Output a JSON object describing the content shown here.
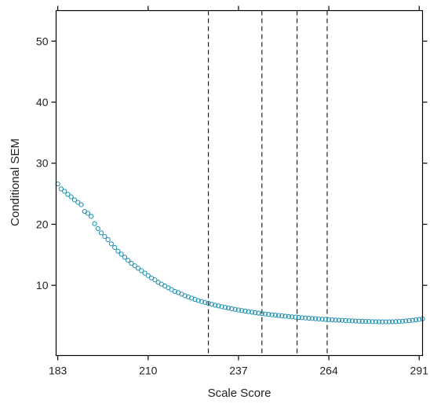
{
  "chart_data": {
    "type": "scatter",
    "xlabel": "Scale Score",
    "ylabel": "Conditional SEM",
    "xlim": [
      182.5,
      292
    ],
    "ylim": [
      -1.5,
      55
    ],
    "x_ticks": [
      183,
      210,
      237,
      264,
      291
    ],
    "y_ticks": [
      10,
      20,
      30,
      40,
      50
    ],
    "x_tick_labels": [
      "183",
      "210",
      "237",
      "264",
      "291"
    ],
    "y_tick_labels": [
      "10",
      "20",
      "30",
      "40",
      "50"
    ],
    "cut_scores": [
      228,
      244,
      254.5,
      263.5
    ],
    "grid": false,
    "marker_color": "#1a8fb0",
    "points": [
      [
        183,
        26.6
      ],
      [
        184,
        25.8
      ],
      [
        185,
        25.4
      ],
      [
        186,
        24.9
      ],
      [
        187,
        24.5
      ],
      [
        188,
        24.0
      ],
      [
        189,
        23.6
      ],
      [
        190,
        23.2
      ],
      [
        191,
        22.1
      ],
      [
        192,
        21.8
      ],
      [
        193,
        21.3
      ],
      [
        194,
        20.1
      ],
      [
        195,
        19.3
      ],
      [
        196,
        18.6
      ],
      [
        197,
        18.0
      ],
      [
        198,
        17.5
      ],
      [
        199,
        16.8
      ],
      [
        200,
        16.2
      ],
      [
        201,
        15.6
      ],
      [
        202,
        15.1
      ],
      [
        203,
        14.6
      ],
      [
        204,
        14.1
      ],
      [
        205,
        13.6
      ],
      [
        206,
        13.2
      ],
      [
        207,
        12.8
      ],
      [
        208,
        12.4
      ],
      [
        209,
        12.0
      ],
      [
        210,
        11.6
      ],
      [
        211,
        11.2
      ],
      [
        212,
        10.9
      ],
      [
        213,
        10.5
      ],
      [
        214,
        10.2
      ],
      [
        215,
        9.9
      ],
      [
        216,
        9.6
      ],
      [
        217,
        9.3
      ],
      [
        218,
        9.0
      ],
      [
        219,
        8.8
      ],
      [
        220,
        8.55
      ],
      [
        221,
        8.3
      ],
      [
        222,
        8.1
      ],
      [
        223,
        7.9
      ],
      [
        224,
        7.7
      ],
      [
        225,
        7.5
      ],
      [
        226,
        7.35
      ],
      [
        227,
        7.2
      ],
      [
        228,
        7.05
      ],
      [
        229,
        6.9
      ],
      [
        230,
        6.75
      ],
      [
        231,
        6.62
      ],
      [
        232,
        6.5
      ],
      [
        233,
        6.38
      ],
      [
        234,
        6.27
      ],
      [
        235,
        6.16
      ],
      [
        236,
        6.06
      ],
      [
        237,
        5.96
      ],
      [
        238,
        5.87
      ],
      [
        239,
        5.78
      ],
      [
        240,
        5.69
      ],
      [
        241,
        5.61
      ],
      [
        242,
        5.53
      ],
      [
        243,
        5.45
      ],
      [
        244,
        5.38
      ],
      [
        245,
        5.31
      ],
      [
        246,
        5.24
      ],
      [
        247,
        5.18
      ],
      [
        248,
        5.12
      ],
      [
        249,
        5.06
      ],
      [
        250,
        5.0
      ],
      [
        251,
        4.94
      ],
      [
        252,
        4.89
      ],
      [
        253,
        4.84
      ],
      [
        254,
        4.79
      ],
      [
        255,
        4.74
      ],
      [
        256,
        4.7
      ],
      [
        257,
        4.65
      ],
      [
        258,
        4.61
      ],
      [
        259,
        4.57
      ],
      [
        260,
        4.53
      ],
      [
        261,
        4.49
      ],
      [
        262,
        4.45
      ],
      [
        263,
        4.42
      ],
      [
        264,
        4.38
      ],
      [
        265,
        4.35
      ],
      [
        266,
        4.32
      ],
      [
        267,
        4.29
      ],
      [
        268,
        4.26
      ],
      [
        269,
        4.23
      ],
      [
        270,
        4.2
      ],
      [
        271,
        4.18
      ],
      [
        272,
        4.15
      ],
      [
        273,
        4.13
      ],
      [
        274,
        4.11
      ],
      [
        275,
        4.09
      ],
      [
        276,
        4.07
      ],
      [
        277,
        4.05
      ],
      [
        278,
        4.04
      ],
      [
        279,
        4.03
      ],
      [
        280,
        4.02
      ],
      [
        281,
        4.02
      ],
      [
        282,
        4.02
      ],
      [
        283,
        4.03
      ],
      [
        284,
        4.05
      ],
      [
        285,
        4.08
      ],
      [
        286,
        4.12
      ],
      [
        287,
        4.17
      ],
      [
        288,
        4.22
      ],
      [
        289,
        4.28
      ],
      [
        290,
        4.35
      ],
      [
        291,
        4.42
      ],
      [
        292,
        4.5
      ]
    ]
  }
}
